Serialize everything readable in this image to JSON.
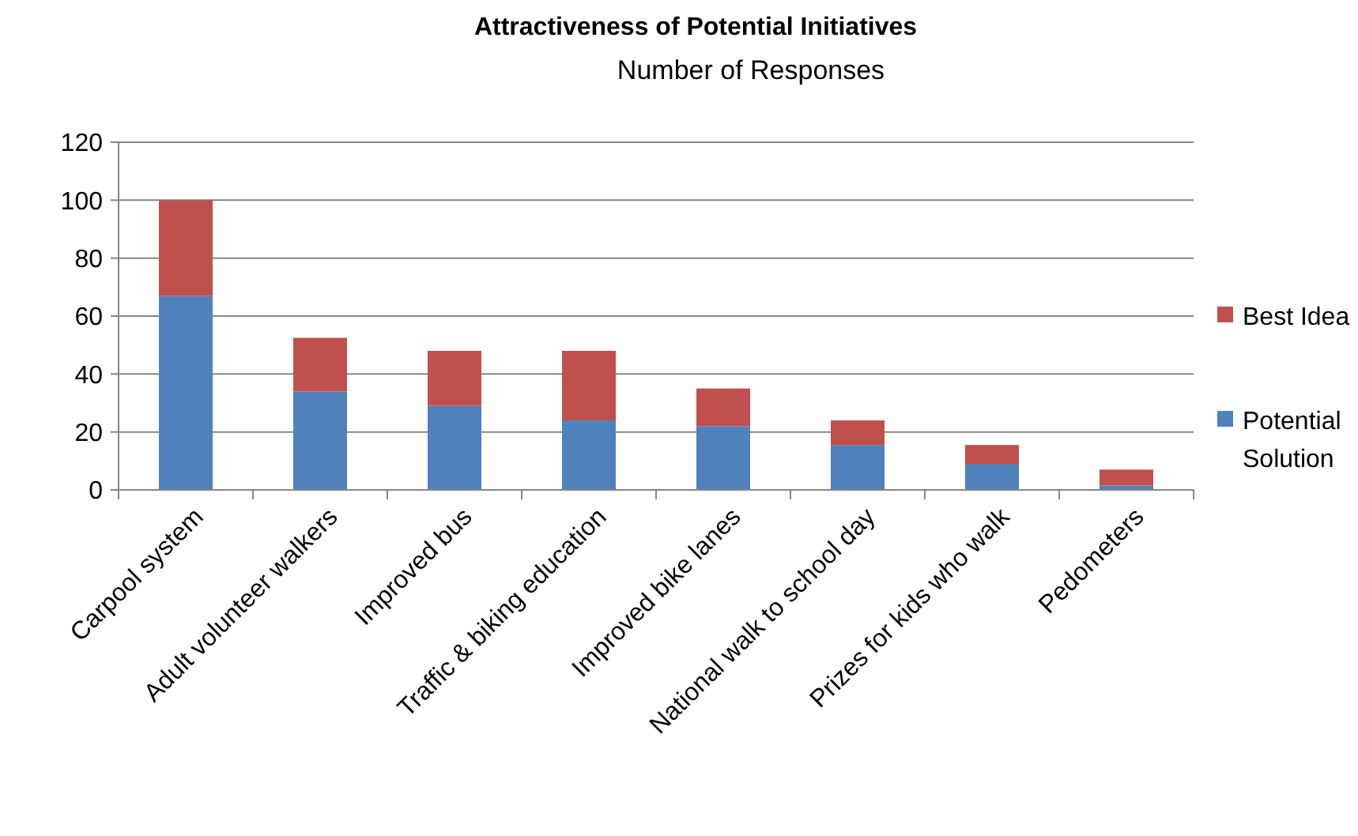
{
  "chart_data": {
    "type": "bar",
    "title": "Attractiveness of Potential Initiatives",
    "subtitle": "Number of Responses",
    "categories": [
      "Carpool system",
      "Adult volunteer walkers",
      "Improved bus",
      "Traffic & biking education",
      "Improved bike lanes",
      "National walk to school day",
      "Prizes for kids who walk",
      "Pedometers"
    ],
    "series": [
      {
        "name": "Potential Solution",
        "color": "#4f81bd",
        "values": [
          67,
          34,
          29,
          24,
          22,
          15.5,
          9,
          1.5
        ]
      },
      {
        "name": "Best Idea",
        "color": "#c0504d",
        "values": [
          33,
          18.5,
          19,
          24,
          13,
          8.5,
          6.5,
          5.5
        ]
      }
    ],
    "stacked": true,
    "ylim": [
      0,
      120
    ],
    "yticks": [
      0,
      20,
      40,
      60,
      80,
      100,
      120
    ],
    "grid": "y",
    "legend": "right"
  }
}
